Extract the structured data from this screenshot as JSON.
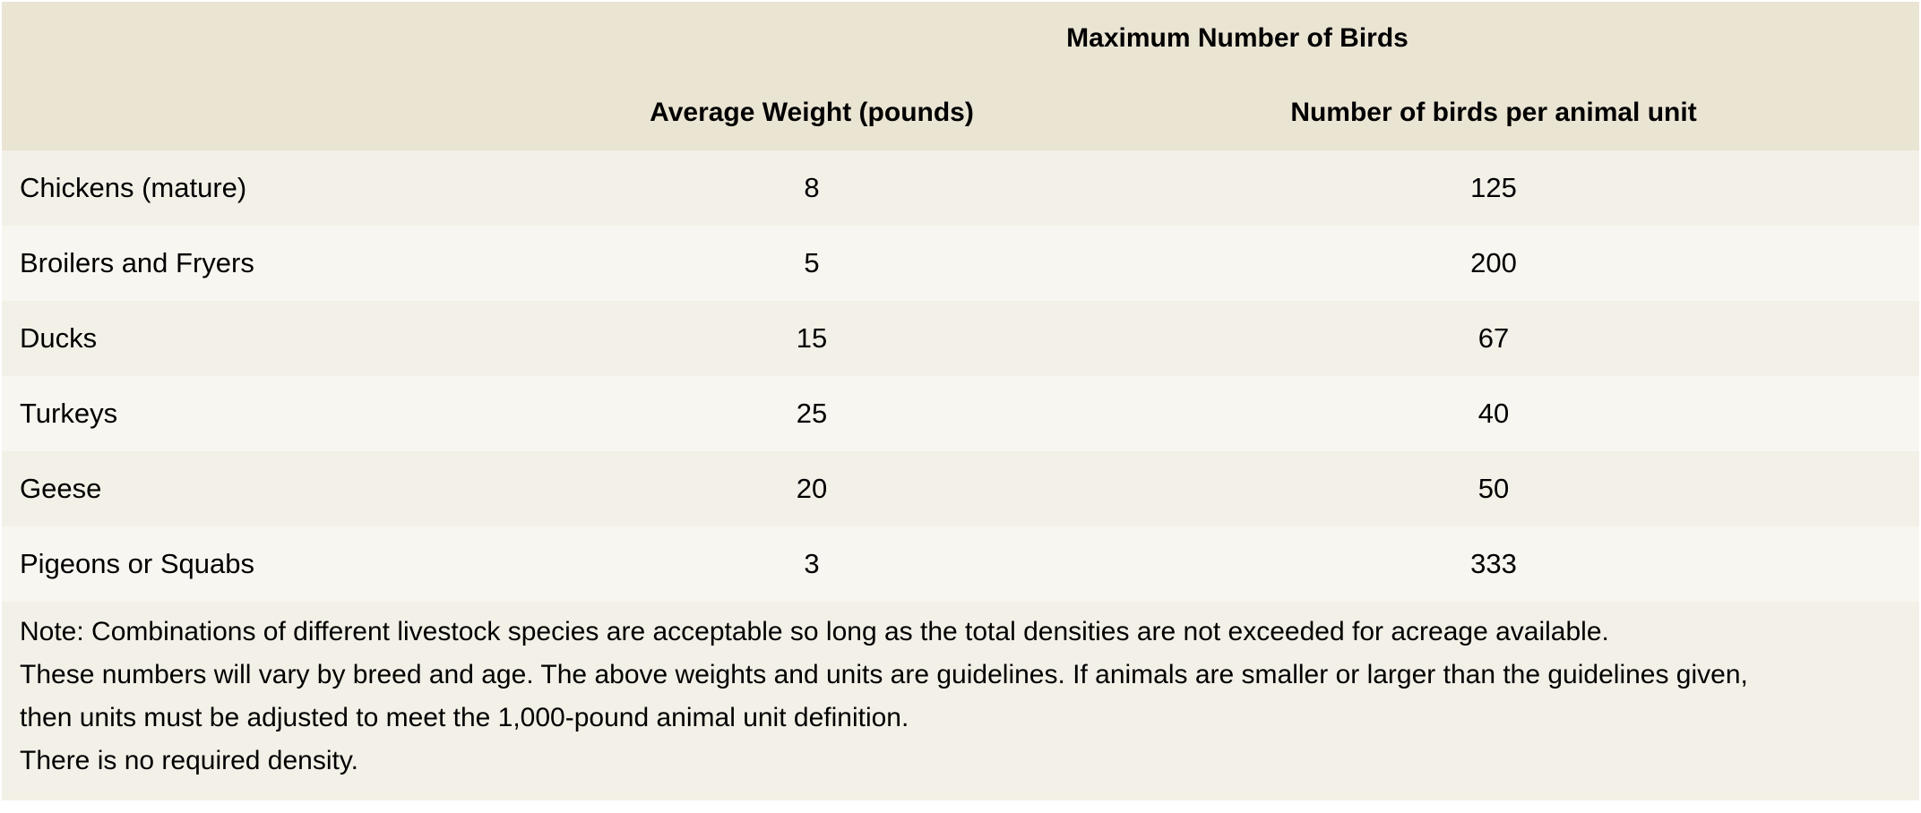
{
  "table": {
    "group_header": "Maximum Number of Birds",
    "columns": [
      "",
      "Average Weight (pounds)",
      "Number of birds per animal unit"
    ],
    "rows": [
      {
        "name": "Chickens (mature)",
        "weight": "8",
        "birds": "125"
      },
      {
        "name": "Broilers and Fryers",
        "weight": "5",
        "birds": "200"
      },
      {
        "name": "Ducks",
        "weight": "15",
        "birds": "67"
      },
      {
        "name": "Turkeys",
        "weight": "25",
        "birds": "40"
      },
      {
        "name": "Geese",
        "weight": "20",
        "birds": "50"
      },
      {
        "name": "Pigeons or Squabs",
        "weight": "3",
        "birds": "333"
      }
    ]
  },
  "notes": [
    "Note: Combinations of different livestock species are acceptable so long as the total densities are not exceeded for acreage available.",
    "These numbers will vary by breed and age. The above weights and units are guidelines. If animals are smaller or larger than the guidelines given,",
    "then units must be adjusted to meet the 1,000-pound animal unit definition.",
    "There is no required density."
  ],
  "colors": {
    "header_bg": "#eae4d3",
    "row_odd_bg": "#f3f0e7",
    "row_even_bg": "#f8f6f0"
  }
}
